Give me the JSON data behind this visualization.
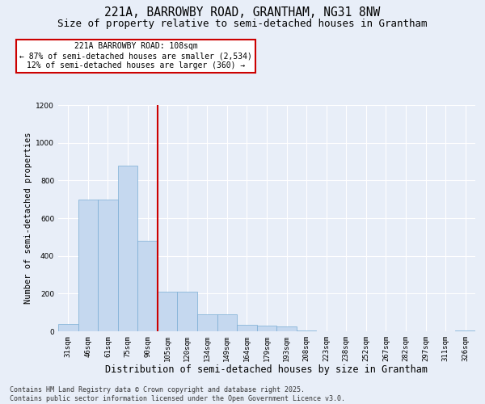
{
  "title": "221A, BARROWBY ROAD, GRANTHAM, NG31 8NW",
  "subtitle": "Size of property relative to semi-detached houses in Grantham",
  "xlabel": "Distribution of semi-detached houses by size in Grantham",
  "ylabel": "Number of semi-detached properties",
  "categories": [
    "31sqm",
    "46sqm",
    "61sqm",
    "75sqm",
    "90sqm",
    "105sqm",
    "120sqm",
    "134sqm",
    "149sqm",
    "164sqm",
    "179sqm",
    "193sqm",
    "208sqm",
    "223sqm",
    "238sqm",
    "252sqm",
    "267sqm",
    "282sqm",
    "297sqm",
    "311sqm",
    "326sqm"
  ],
  "values": [
    40,
    700,
    700,
    880,
    480,
    210,
    210,
    90,
    90,
    35,
    30,
    25,
    5,
    2,
    1,
    0,
    0,
    0,
    0,
    0,
    5
  ],
  "bar_color": "#c5d8ef",
  "bar_edgecolor": "#7aadd4",
  "vline_position": 4.5,
  "vline_color": "#cc0000",
  "annotation_text": "221A BARROWBY ROAD: 108sqm\n← 87% of semi-detached houses are smaller (2,534)\n12% of semi-detached houses are larger (360) →",
  "annotation_box_facecolor": "#ffffff",
  "annotation_box_edgecolor": "#cc0000",
  "footer": "Contains HM Land Registry data © Crown copyright and database right 2025.\nContains public sector information licensed under the Open Government Licence v3.0.",
  "ylim": [
    0,
    1200
  ],
  "yticks": [
    0,
    200,
    400,
    600,
    800,
    1000,
    1200
  ],
  "background_color": "#e8eef8",
  "grid_color": "#ffffff",
  "title_fontsize": 10.5,
  "subtitle_fontsize": 9,
  "xlabel_fontsize": 8.5,
  "ylabel_fontsize": 7.5,
  "tick_fontsize": 6.5,
  "footer_fontsize": 6,
  "ann_fontsize": 7
}
